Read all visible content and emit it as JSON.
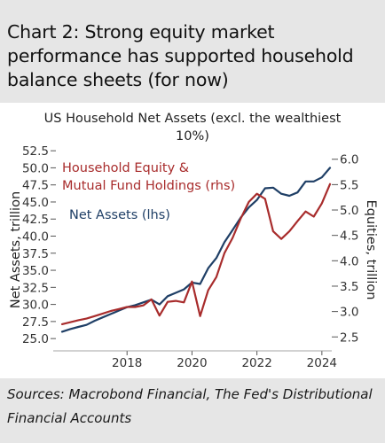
{
  "figure_title": "Chart 2: Strong equity market performance has supported household balance sheets (for now)",
  "source_note": "Sources: Macrobond Financial, The Fed's Distributional Financial Accounts",
  "colors": {
    "net_assets": "#1f3f66",
    "equity": "#a82c2c",
    "axis_text": "#333333"
  },
  "chart_data": {
    "type": "line",
    "title": "US Household Net Assets (excl. the wealthiest 10%)",
    "ylabel": "Net Assets, trillion",
    "y2label": "Equities, trillion",
    "ylim": [
      24.5,
      52.0
    ],
    "y2lim": [
      2.4,
      6.1
    ],
    "yticks": [
      "25.0",
      "27.5",
      "30.0",
      "32.5",
      "35.0",
      "37.5",
      "40.0",
      "42.5",
      "45.0",
      "47.5",
      "50.0",
      "52.5"
    ],
    "y2ticks": [
      "2.5",
      "3.0",
      "3.5",
      "4.0",
      "4.5",
      "5.0",
      "5.5",
      "6.0"
    ],
    "xticks": [
      "2018",
      "2020",
      "2022",
      "2024"
    ],
    "xlim": [
      2016.0,
      2024.25
    ],
    "legend": [
      "Household Equity &",
      "Mutual Fund Holdings (rhs)",
      "Net Assets (lhs)"
    ],
    "series": [
      {
        "name": "Net Assets (lhs)",
        "axis": "left",
        "color": "#1f3f66",
        "x": [
          2016.0,
          2016.25,
          2016.5,
          2016.75,
          2017.0,
          2017.25,
          2017.5,
          2017.75,
          2018.0,
          2018.25,
          2018.5,
          2018.75,
          2019.0,
          2019.25,
          2019.5,
          2019.75,
          2020.0,
          2020.25,
          2020.5,
          2020.75,
          2021.0,
          2021.25,
          2021.5,
          2021.75,
          2022.0,
          2022.25,
          2022.5,
          2022.75,
          2023.0,
          2023.25,
          2023.5,
          2023.75,
          2024.0,
          2024.25
        ],
        "values": [
          26.0,
          26.4,
          26.7,
          27.0,
          27.6,
          28.1,
          28.6,
          29.1,
          29.6,
          29.9,
          30.3,
          30.7,
          30.0,
          31.2,
          31.7,
          32.2,
          33.2,
          33.0,
          35.3,
          36.8,
          39.1,
          40.9,
          42.7,
          44.2,
          45.3,
          47.0,
          47.1,
          46.2,
          45.9,
          46.4,
          48.0,
          48.0,
          48.6,
          50.0
        ]
      },
      {
        "name": "Household Equity & Mutual Fund Holdings (rhs)",
        "axis": "right",
        "color": "#a82c2c",
        "x": [
          2016.0,
          2016.25,
          2016.5,
          2016.75,
          2017.0,
          2017.25,
          2017.5,
          2017.75,
          2018.0,
          2018.25,
          2018.5,
          2018.75,
          2019.0,
          2019.25,
          2019.5,
          2019.75,
          2020.0,
          2020.25,
          2020.5,
          2020.75,
          2021.0,
          2021.25,
          2021.5,
          2021.75,
          2022.0,
          2022.25,
          2022.5,
          2022.75,
          2023.0,
          2023.25,
          2023.5,
          2023.75,
          2024.0,
          2024.25
        ],
        "values": [
          2.75,
          2.79,
          2.83,
          2.86,
          2.91,
          2.96,
          3.01,
          3.05,
          3.09,
          3.09,
          3.12,
          3.24,
          2.92,
          3.19,
          3.21,
          3.18,
          3.59,
          2.91,
          3.42,
          3.68,
          4.15,
          4.45,
          4.83,
          5.16,
          5.32,
          5.22,
          4.58,
          4.43,
          4.58,
          4.78,
          4.97,
          4.87,
          5.13,
          5.51
        ]
      }
    ]
  }
}
